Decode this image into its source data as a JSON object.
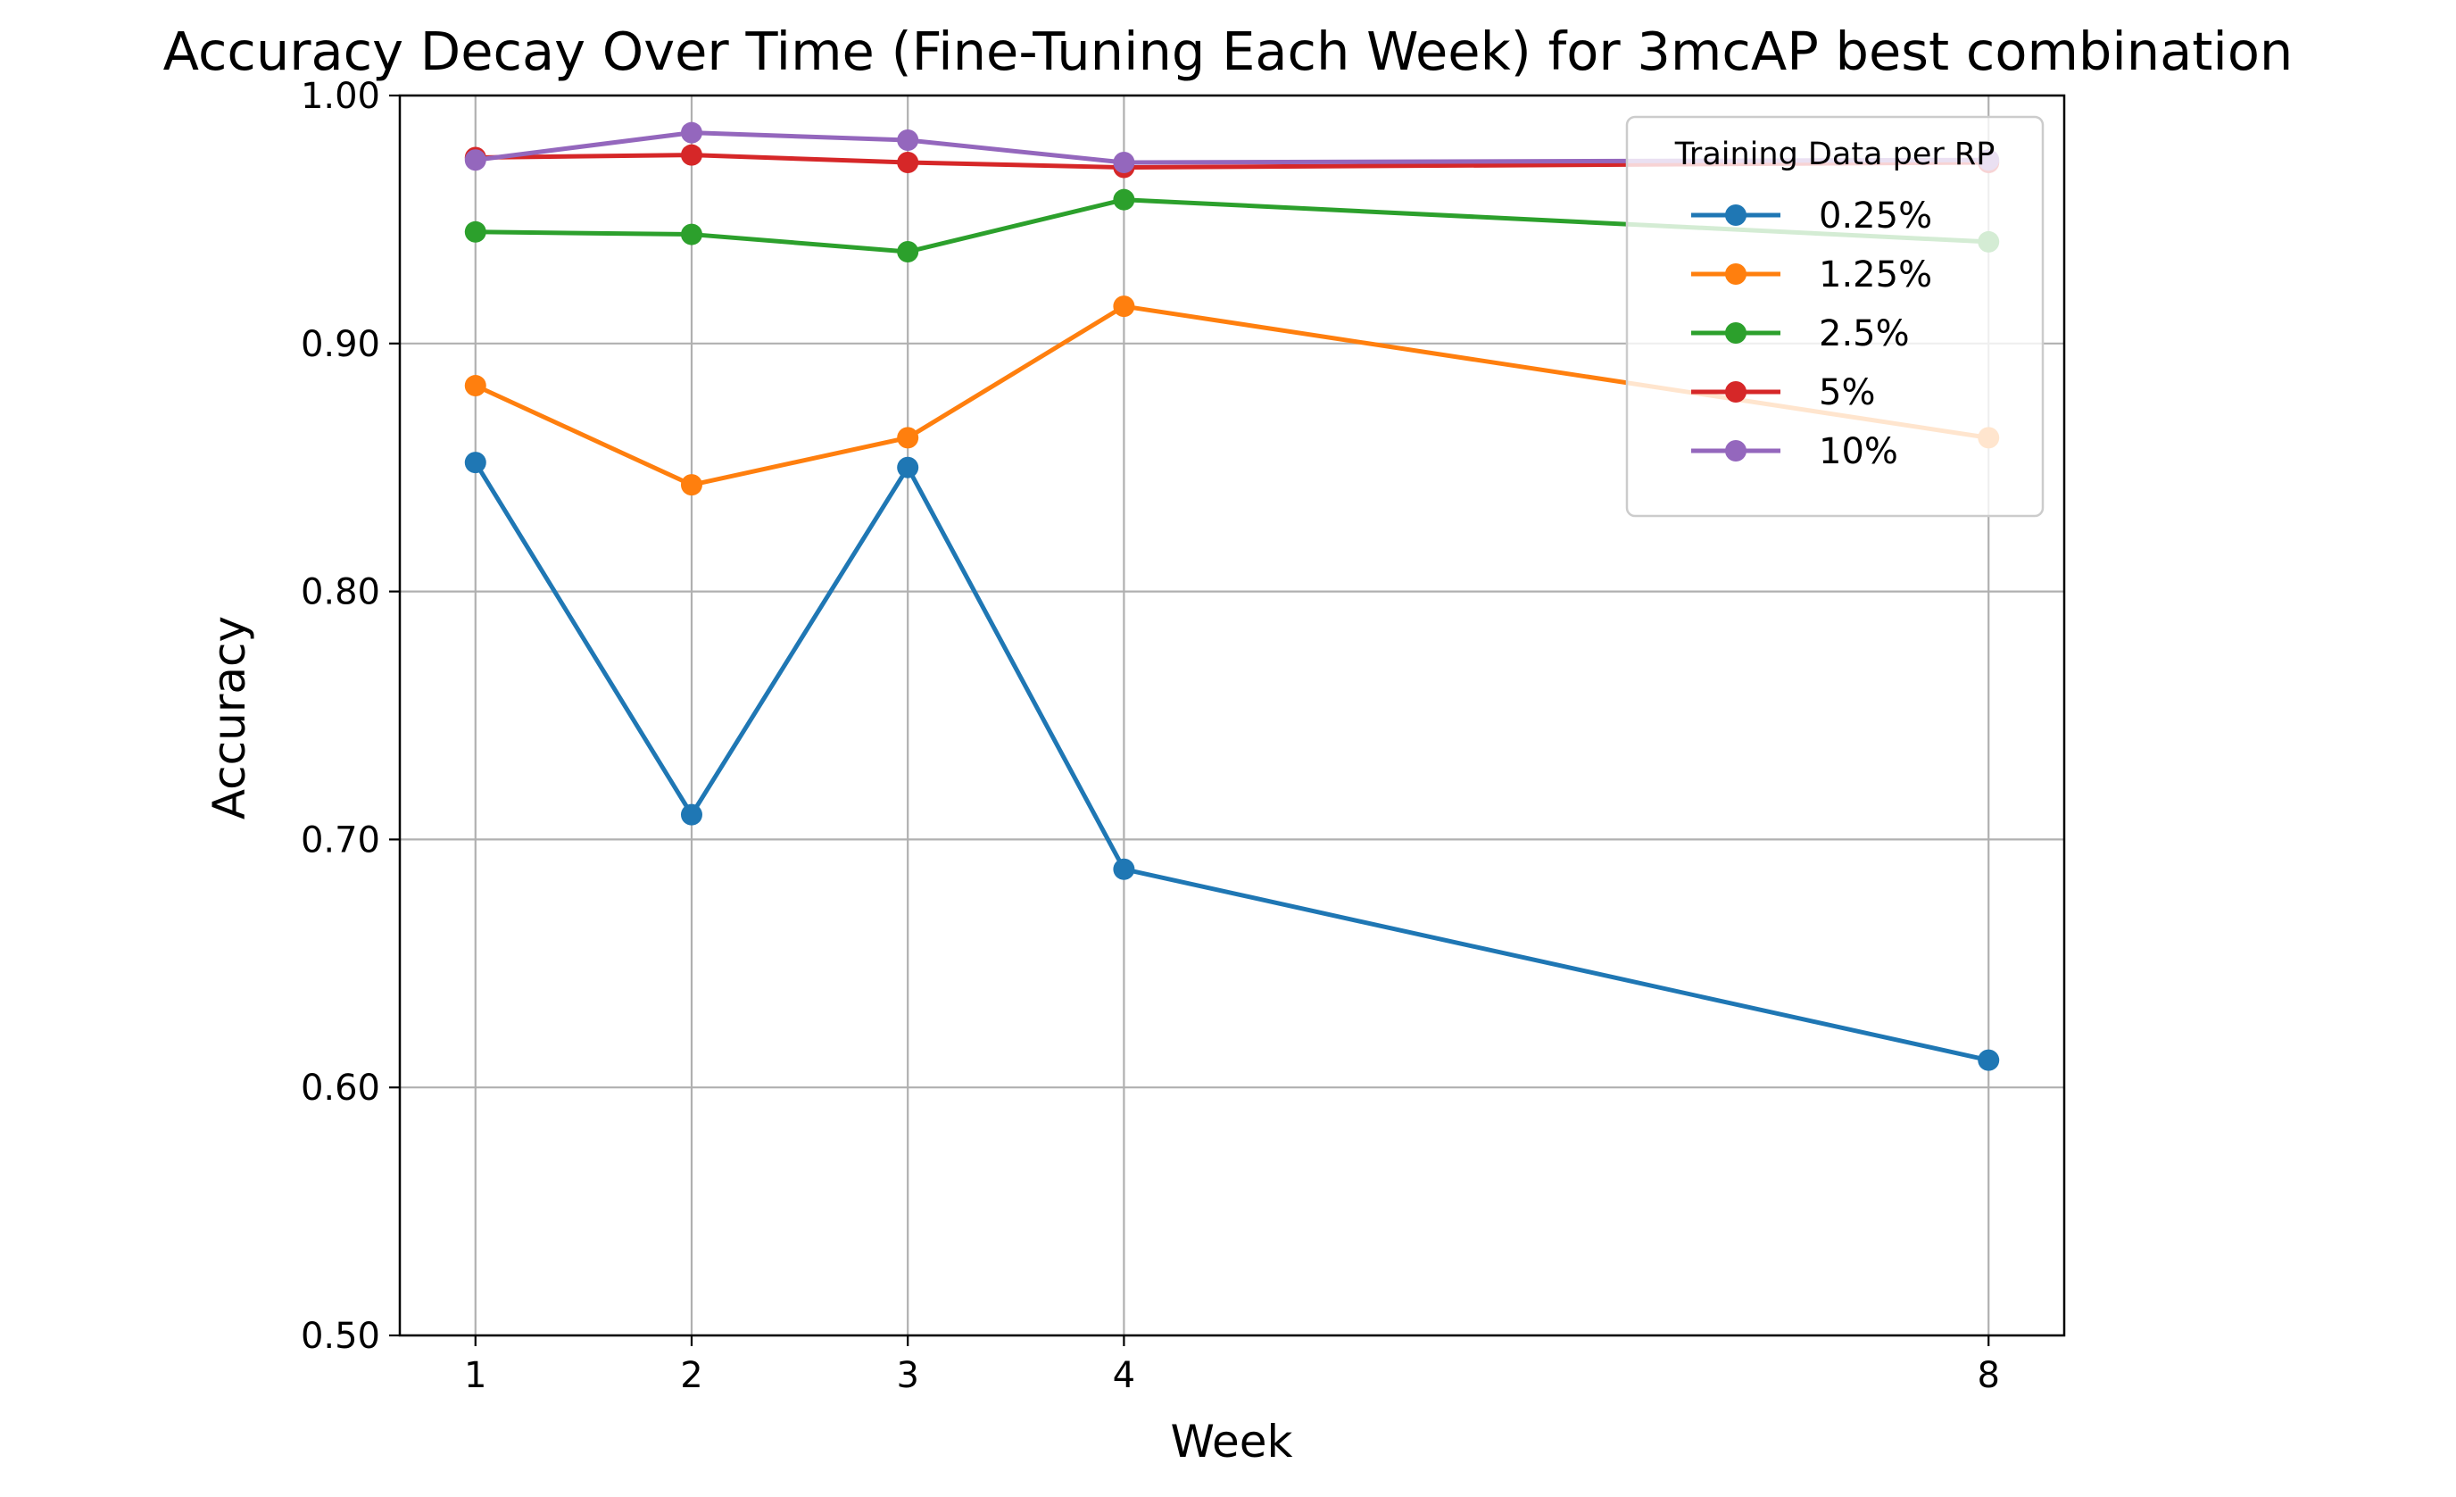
{
  "chart_data": {
    "type": "line",
    "title": "Accuracy Decay Over Time (Fine-Tuning Each Week) for 3mcAP best combination",
    "xlabel": "Week",
    "ylabel": "Accuracy",
    "x": [
      1,
      2,
      3,
      4,
      8
    ],
    "x_tick_labels": [
      "1",
      "2",
      "3",
      "4",
      "8"
    ],
    "xlim": [
      0.65,
      8.35
    ],
    "ylim": [
      0.5,
      1.0
    ],
    "y_ticks": [
      0.5,
      0.6,
      0.7,
      0.8,
      0.9,
      1.0
    ],
    "y_tick_labels": [
      "0.50",
      "0.60",
      "0.70",
      "0.80",
      "0.90",
      "1.00"
    ],
    "grid": true,
    "legend": {
      "title": "Training Data per RP",
      "placement": "top-right"
    },
    "series": [
      {
        "name": "0.25%",
        "color": "#1f77b4",
        "values": [
          0.852,
          0.71,
          0.85,
          0.688,
          0.611
        ]
      },
      {
        "name": "1.25%",
        "color": "#ff7f0e",
        "values": [
          0.883,
          0.843,
          0.862,
          0.915,
          0.862
        ]
      },
      {
        "name": "2.5%",
        "color": "#2ca02c",
        "values": [
          0.945,
          0.944,
          0.937,
          0.958,
          0.941
        ]
      },
      {
        "name": "5%",
        "color": "#d62728",
        "values": [
          0.975,
          0.976,
          0.973,
          0.971,
          0.973
        ]
      },
      {
        "name": "10%",
        "color": "#9467bd",
        "values": [
          0.974,
          0.985,
          0.982,
          0.973,
          0.974
        ]
      }
    ]
  }
}
